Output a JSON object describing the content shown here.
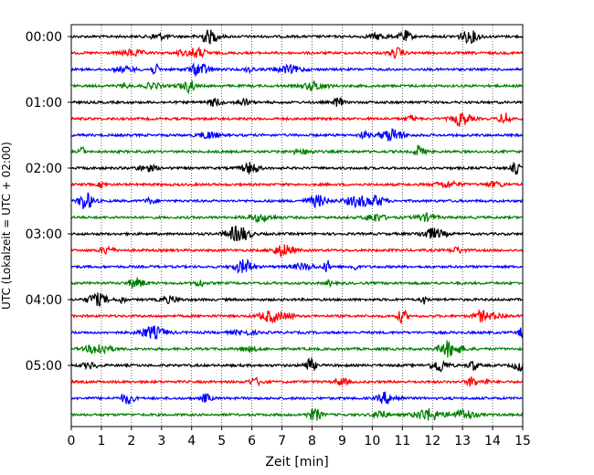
{
  "chart_data": {
    "type": "line",
    "title": "",
    "xlabel": "Zeit  [min]",
    "ylabel": "UTC (Lokalzeit = UTC + 02:00)",
    "xlim": [
      0,
      15
    ],
    "xticks": [
      "0",
      "1",
      "2",
      "3",
      "4",
      "5",
      "6",
      "7",
      "8",
      "9",
      "10",
      "11",
      "12",
      "13",
      "14",
      "15"
    ],
    "yticks": [
      "00:00",
      "01:00",
      "02:00",
      "03:00",
      "04:00",
      "05:00"
    ],
    "grid": "vertical dotted lines at each minute",
    "trace_colors": [
      "#000000",
      "#ff0000",
      "#0000ff",
      "#008000"
    ],
    "traces": [
      {
        "start": "00:00",
        "color": "#000000"
      },
      {
        "start": "00:15",
        "color": "#ff0000"
      },
      {
        "start": "00:30",
        "color": "#0000ff"
      },
      {
        "start": "00:45",
        "color": "#008000"
      },
      {
        "start": "01:00",
        "color": "#000000"
      },
      {
        "start": "01:15",
        "color": "#ff0000"
      },
      {
        "start": "01:30",
        "color": "#0000ff"
      },
      {
        "start": "01:45",
        "color": "#008000"
      },
      {
        "start": "02:00",
        "color": "#000000"
      },
      {
        "start": "02:15",
        "color": "#ff0000"
      },
      {
        "start": "02:30",
        "color": "#0000ff"
      },
      {
        "start": "02:45",
        "color": "#008000"
      },
      {
        "start": "03:00",
        "color": "#000000"
      },
      {
        "start": "03:15",
        "color": "#ff0000"
      },
      {
        "start": "03:30",
        "color": "#0000ff"
      },
      {
        "start": "03:45",
        "color": "#008000"
      },
      {
        "start": "04:00",
        "color": "#000000"
      },
      {
        "start": "04:15",
        "color": "#ff0000"
      },
      {
        "start": "04:30",
        "color": "#0000ff"
      },
      {
        "start": "04:45",
        "color": "#008000"
      },
      {
        "start": "05:00",
        "color": "#000000"
      },
      {
        "start": "05:15",
        "color": "#ff0000"
      },
      {
        "start": "05:30",
        "color": "#0000ff"
      },
      {
        "start": "05:45",
        "color": "#008000"
      }
    ]
  }
}
